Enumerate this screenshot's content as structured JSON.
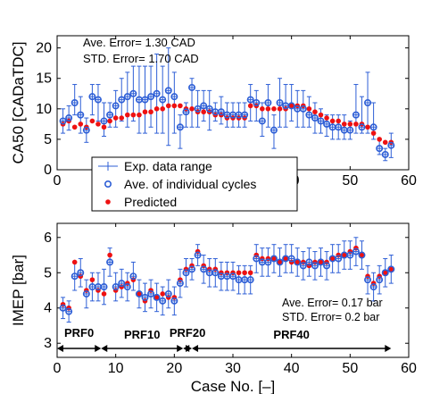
{
  "chart_data": [
    {
      "type": "scatter",
      "ylabel": "CA50 [CADaTDC]",
      "xlim": [
        0,
        60
      ],
      "ylim": [
        0,
        22
      ],
      "xticks": [
        0,
        10,
        20,
        30,
        40,
        50,
        60
      ],
      "yticks": [
        0,
        5,
        10,
        15,
        20
      ],
      "grid": false,
      "annotations": [
        "Ave. Error= 1.30 CAD",
        "STD. Error= 1.70 CAD"
      ],
      "legend": {
        "placement": "bottom-left",
        "entries": [
          "Exp. data range",
          "Ave. of individual cycles",
          "Predicted"
        ]
      },
      "series": [
        {
          "name": "Exp. data range",
          "type": "errorbar",
          "x": [
            1,
            2,
            3,
            4,
            5,
            6,
            7,
            8,
            9,
            10,
            11,
            12,
            13,
            14,
            15,
            16,
            17,
            18,
            19,
            20,
            21,
            22,
            23,
            24,
            25,
            26,
            27,
            28,
            29,
            30,
            31,
            32,
            33,
            34,
            35,
            36,
            37,
            38,
            39,
            40,
            41,
            42,
            43,
            44,
            45,
            46,
            47,
            48,
            49,
            50,
            51,
            52,
            53,
            54,
            55,
            56,
            57
          ],
          "center": [
            8,
            8.5,
            11,
            9,
            6.5,
            12,
            11.5,
            8,
            9,
            10.5,
            11.5,
            12,
            12.5,
            11.5,
            11.5,
            12,
            12.5,
            11.5,
            13,
            12,
            7,
            9.5,
            13.5,
            10,
            10.5,
            10,
            9.5,
            9.5,
            9,
            9,
            9,
            9,
            11.5,
            11,
            8,
            11,
            6.5,
            11,
            10.5,
            10.5,
            10,
            10,
            9,
            8.5,
            8,
            7.5,
            7,
            7,
            6.5,
            6.5,
            9,
            7,
            11,
            7,
            3.5,
            2.5,
            4
          ],
          "low": [
            6,
            6.5,
            9,
            6,
            4.5,
            9,
            8,
            5.5,
            7,
            7,
            8,
            7,
            8,
            6,
            6,
            7,
            6,
            6,
            4,
            6,
            3.5,
            7,
            7,
            7,
            8,
            6.5,
            8,
            7.5,
            7,
            7,
            7,
            7,
            8,
            8,
            5.5,
            7,
            3.5,
            7,
            7,
            8,
            7,
            7,
            7,
            6,
            6,
            5.5,
            5,
            5,
            5,
            5,
            6,
            6,
            6,
            5,
            2.5,
            1.5,
            2
          ],
          "high": [
            10,
            10.5,
            14,
            12,
            8.5,
            14,
            14,
            11,
            11,
            13,
            15,
            16,
            17,
            17,
            17,
            17,
            19,
            17,
            20,
            16,
            9,
            11,
            15,
            13,
            13,
            13,
            11,
            12,
            11,
            11,
            11,
            11,
            14,
            13,
            11,
            14,
            9,
            15,
            14,
            14,
            13,
            13,
            12,
            11,
            10,
            9,
            9,
            9,
            9,
            8,
            14,
            12,
            16,
            11,
            5,
            3.5,
            6
          ]
        },
        {
          "name": "Ave. of individual cycles",
          "type": "circle",
          "x": [
            1,
            2,
            3,
            4,
            5,
            6,
            7,
            8,
            9,
            10,
            11,
            12,
            13,
            14,
            15,
            16,
            17,
            18,
            19,
            20,
            21,
            22,
            23,
            24,
            25,
            26,
            27,
            28,
            29,
            30,
            31,
            32,
            33,
            34,
            35,
            36,
            37,
            38,
            39,
            40,
            41,
            42,
            43,
            44,
            45,
            46,
            47,
            48,
            49,
            50,
            51,
            52,
            53,
            54,
            55,
            56,
            57
          ],
          "y": [
            8,
            8.5,
            11,
            9,
            6.5,
            12,
            11.5,
            8,
            9,
            10.5,
            11.5,
            12,
            12.5,
            11.5,
            11.5,
            12,
            12.5,
            11.5,
            13,
            12,
            7,
            9.5,
            13.5,
            10,
            10.5,
            10,
            9.5,
            9.5,
            9,
            9,
            9,
            9,
            11.5,
            11,
            8,
            11,
            6.5,
            11,
            10.5,
            10.5,
            10,
            10,
            9,
            8.5,
            8,
            7.5,
            7,
            7,
            6.5,
            6.5,
            9,
            7,
            11,
            7,
            3.5,
            2.5,
            4
          ]
        },
        {
          "name": "Predicted",
          "type": "dot",
          "x": [
            1,
            2,
            3,
            4,
            5,
            6,
            7,
            8,
            9,
            10,
            11,
            12,
            13,
            14,
            15,
            16,
            17,
            18,
            19,
            20,
            21,
            22,
            23,
            24,
            25,
            26,
            27,
            28,
            29,
            30,
            31,
            32,
            33,
            34,
            35,
            36,
            37,
            38,
            39,
            40,
            41,
            42,
            43,
            44,
            45,
            46,
            47,
            48,
            49,
            50,
            51,
            52,
            53,
            54,
            55,
            56,
            57
          ],
          "y": [
            7.5,
            8,
            7,
            7.5,
            7,
            8,
            7.5,
            7,
            8,
            8.5,
            8.5,
            9,
            9,
            9,
            9.5,
            9.5,
            10,
            10,
            10.5,
            10.5,
            10.5,
            10,
            10,
            9.5,
            9.5,
            9.5,
            9,
            9,
            8.5,
            8.5,
            8.5,
            8.5,
            10.5,
            10.5,
            10,
            10,
            10,
            10,
            10,
            10.5,
            10.5,
            10.5,
            10,
            9.5,
            9,
            8.5,
            8,
            8,
            7.5,
            7.5,
            7.5,
            7.5,
            7,
            6,
            5,
            4.5,
            4.5
          ]
        }
      ]
    },
    {
      "type": "scatter",
      "xlabel": "Case No. [–]",
      "ylabel": "IMEP [bar]",
      "xlim": [
        0,
        60
      ],
      "ylim": [
        2.6,
        6.4
      ],
      "xticks": [
        0,
        10,
        20,
        30,
        40,
        50,
        60
      ],
      "yticks": [
        3,
        4,
        5,
        6
      ],
      "grid": false,
      "annotations": [
        "Ave. Error= 0.17 bar",
        "STD. Error= 0.2 bar"
      ],
      "ranges": [
        {
          "label": "PRF0",
          "from": 0,
          "to": 7.5
        },
        {
          "label": "PRF10",
          "from": 7.5,
          "to": 21.5
        },
        {
          "label": "PRF20",
          "from": 21.5,
          "to": 23
        },
        {
          "label": "PRF40",
          "from": 23,
          "to": 57
        }
      ],
      "series": [
        {
          "name": "Exp. data range",
          "type": "errorbar",
          "x": [
            1,
            2,
            3,
            4,
            5,
            6,
            7,
            8,
            9,
            10,
            11,
            12,
            13,
            14,
            15,
            16,
            17,
            18,
            19,
            20,
            21,
            22,
            23,
            24,
            25,
            26,
            27,
            28,
            29,
            30,
            31,
            32,
            33,
            34,
            35,
            36,
            37,
            38,
            39,
            40,
            41,
            42,
            43,
            44,
            45,
            46,
            47,
            48,
            49,
            50,
            51,
            52,
            53,
            54,
            55,
            56,
            57
          ],
          "center": [
            4,
            3.9,
            4.9,
            5,
            4.4,
            4.6,
            4.6,
            4.6,
            5.3,
            4.6,
            4.7,
            4.6,
            4.9,
            4.4,
            4.3,
            4.4,
            4.3,
            4.2,
            4.4,
            4.2,
            4.7,
            5,
            5.1,
            5.5,
            5.1,
            5,
            5,
            4.9,
            4.9,
            4.9,
            4.8,
            4.8,
            4.8,
            5.4,
            5.3,
            5.3,
            5.4,
            5.3,
            5.4,
            5.4,
            5.3,
            5.2,
            5.3,
            5.2,
            5.3,
            5.2,
            5.4,
            5.4,
            5.5,
            5.5,
            5.6,
            5.5,
            4.8,
            4.6,
            4.8,
            5,
            5.1
          ],
          "low": [
            3.7,
            3.6,
            4.5,
            4.6,
            4,
            4.2,
            4.2,
            4.1,
            4.9,
            4.2,
            4.3,
            4.2,
            4.5,
            4,
            3.9,
            4,
            3.9,
            3.8,
            4,
            3.8,
            4.3,
            4.6,
            4.8,
            5.2,
            4.7,
            4.6,
            4.6,
            4.5,
            4.5,
            4.5,
            4.4,
            4.4,
            4.4,
            5,
            4.9,
            4.9,
            5,
            4.9,
            5,
            5,
            4.9,
            4.8,
            4.9,
            4.8,
            4.9,
            4.8,
            5,
            5,
            5.1,
            5.1,
            5.2,
            5.1,
            4.4,
            4.2,
            4.4,
            4.6,
            4.7
          ],
          "high": [
            4.3,
            4.2,
            5.3,
            5.4,
            4.8,
            5,
            5,
            5.1,
            5.7,
            5,
            5.1,
            5,
            5.3,
            4.8,
            4.7,
            4.8,
            4.7,
            4.6,
            4.8,
            4.6,
            5.1,
            5.4,
            5.4,
            5.8,
            5.5,
            5.4,
            5.4,
            5.3,
            5.3,
            5.3,
            5.2,
            5.2,
            5.2,
            5.8,
            5.7,
            5.7,
            5.8,
            5.7,
            5.8,
            5.8,
            5.7,
            5.6,
            5.7,
            5.6,
            5.7,
            5.6,
            5.8,
            5.8,
            5.9,
            5.9,
            6,
            5.9,
            5.2,
            5,
            5.2,
            5.4,
            5.5
          ]
        },
        {
          "name": "Ave. of individual cycles",
          "type": "circle",
          "x": [
            1,
            2,
            3,
            4,
            5,
            6,
            7,
            8,
            9,
            10,
            11,
            12,
            13,
            14,
            15,
            16,
            17,
            18,
            19,
            20,
            21,
            22,
            23,
            24,
            25,
            26,
            27,
            28,
            29,
            30,
            31,
            32,
            33,
            34,
            35,
            36,
            37,
            38,
            39,
            40,
            41,
            42,
            43,
            44,
            45,
            46,
            47,
            48,
            49,
            50,
            51,
            52,
            53,
            54,
            55,
            56,
            57
          ],
          "y": [
            4,
            3.9,
            4.9,
            5,
            4.4,
            4.6,
            4.6,
            4.6,
            5.3,
            4.6,
            4.7,
            4.6,
            4.9,
            4.4,
            4.3,
            4.4,
            4.3,
            4.2,
            4.4,
            4.2,
            4.7,
            5,
            5.1,
            5.5,
            5.1,
            5,
            5,
            4.9,
            4.9,
            4.9,
            4.8,
            4.8,
            4.8,
            5.4,
            5.3,
            5.3,
            5.4,
            5.3,
            5.4,
            5.4,
            5.3,
            5.2,
            5.3,
            5.2,
            5.3,
            5.2,
            5.4,
            5.4,
            5.5,
            5.5,
            5.6,
            5.5,
            4.8,
            4.6,
            4.8,
            5,
            5.1
          ]
        },
        {
          "name": "Predicted",
          "type": "dot",
          "x": [
            1,
            2,
            3,
            4,
            5,
            6,
            7,
            8,
            9,
            10,
            11,
            12,
            13,
            14,
            15,
            16,
            17,
            18,
            19,
            20,
            21,
            22,
            23,
            24,
            25,
            26,
            27,
            28,
            29,
            30,
            31,
            32,
            33,
            34,
            35,
            36,
            37,
            38,
            39,
            40,
            41,
            42,
            43,
            44,
            45,
            46,
            47,
            48,
            49,
            50,
            51,
            52,
            53,
            54,
            55,
            56,
            57
          ],
          "y": [
            4.1,
            4,
            5.3,
            4.9,
            4.5,
            4.8,
            4.5,
            4.4,
            5.5,
            4.5,
            4.6,
            4.7,
            4.8,
            4.4,
            4.2,
            4.5,
            4.3,
            4.4,
            4.3,
            4.3,
            4.8,
            5.1,
            5.2,
            5.6,
            5.2,
            5.1,
            5.1,
            5,
            5,
            5,
            5,
            5,
            5,
            5.5,
            5.4,
            5.4,
            5.4,
            5.3,
            5.4,
            5.3,
            5.3,
            5.3,
            5.2,
            5.3,
            5.3,
            5.3,
            5.4,
            5.5,
            5.5,
            5.6,
            5.7,
            5.5,
            4.9,
            4.7,
            4.9,
            5,
            5.1
          ]
        }
      ]
    }
  ]
}
